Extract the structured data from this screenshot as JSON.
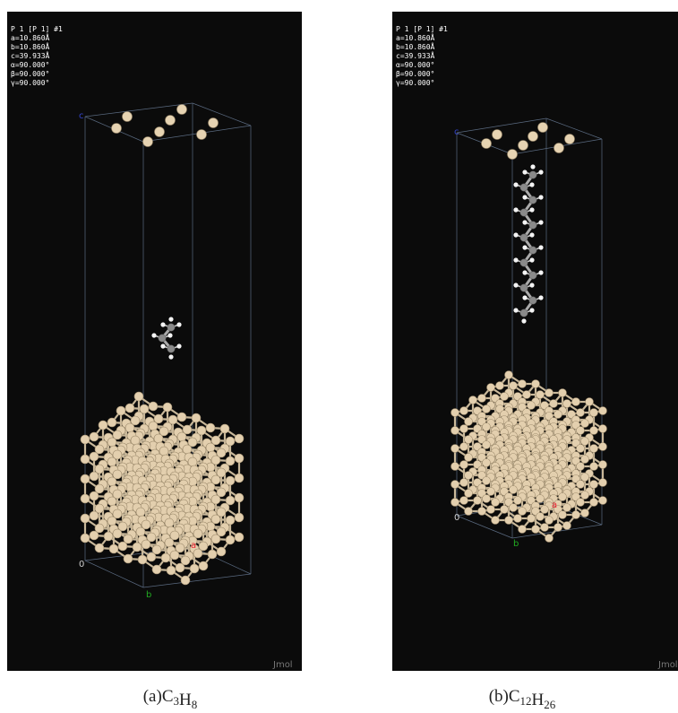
{
  "panels": [
    {
      "header": [
        "P 1 [P 1] #1",
        "a=10.860Å",
        "b=10.860Å",
        "c=39.933Å",
        "α=90.000°",
        "β=90.000°",
        "γ=90.000°"
      ],
      "axes": {
        "origin": "0",
        "a": "a",
        "b": "b",
        "c": "c"
      },
      "watermark": "Jmol",
      "caption": {
        "label": "(a)",
        "formula": [
          {
            "element": "C",
            "count": "3"
          },
          {
            "element": "H",
            "count": "8"
          }
        ]
      }
    },
    {
      "header": [
        "P 1 [P 1] #1",
        "a=10.860Å",
        "b=10.860Å",
        "c=39.933Å",
        "α=90.000°",
        "β=90.000°",
        "γ=90.000°"
      ],
      "axes": {
        "origin": "0",
        "a": "a",
        "b": "b",
        "c": "c"
      },
      "watermark": "Jmol",
      "caption": {
        "label": "(b)",
        "formula": [
          {
            "element": "C",
            "count": "12"
          },
          {
            "element": "H",
            "count": "26"
          }
        ]
      }
    }
  ]
}
